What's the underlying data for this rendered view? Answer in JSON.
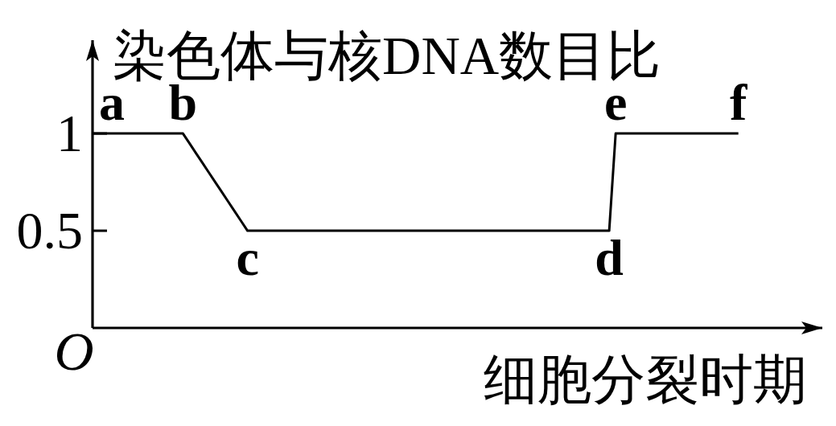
{
  "chart_data": {
    "type": "line",
    "xlabel": "细胞分裂时期",
    "ylabel": "染色体与核DNA数目比",
    "categories": [
      null,
      null,
      null,
      null,
      null,
      null,
      null,
      null,
      null,
      null,
      null,
      null,
      null,
      null,
      null,
      null,
      null,
      null,
      null,
      null,
      null,
      null,
      null,
      null,
      null,
      null,
      null,
      null,
      null,
      null,
      null,
      null,
      null,
      null,
      null,
      null,
      null,
      null,
      null,
      null,
      null,
      null,
      null,
      null,
      null,
      null,
      null,
      null,
      null,
      null,
      null,
      null,
      null,
      null,
      null,
      null,
      null,
      null,
      null,
      null,
      null,
      null,
      null,
      null,
      null,
      null,
      null,
      null,
      null,
      null,
      null,
      null,
      null,
      null,
      null,
      null,
      null,
      null,
      null,
      null,
      null,
      null,
      null,
      null,
      null,
      null,
      null,
      null,
      null,
      null,
      null,
      null,
      null,
      null,
      null,
      null,
      null,
      null,
      null,
      null,
      null,
      null,
      null,
      null,
      null,
      null,
      null,
      null,
      null,
      null,
      null,
      null,
      null,
      null
    ],
    "values": [
      1,
      1,
      1,
      1,
      1,
      1,
      1,
      1,
      1,
      1,
      1,
      1,
      1,
      1,
      1,
      0.95,
      0.9,
      0.85,
      0.8,
      0.75,
      0.7,
      0.65,
      0.6,
      0.55,
      0.5,
      0.5,
      0.5,
      0.5,
      0.5,
      0.5,
      0.5,
      0.5,
      0.5,
      0.5,
      0.5,
      0.5,
      0.5,
      0.5,
      0.5,
      0.5,
      0.5,
      0.5,
      0.5,
      0.5,
      0.5,
      0.5,
      0.5,
      0.5,
      0.5,
      0.5,
      0.5,
      0.5,
      0.5,
      0.5,
      0.5,
      0.5,
      0.5,
      0.5,
      0.5,
      0.5,
      0.5,
      0.5,
      0.5,
      0.5,
      0.5,
      0.5,
      0.5,
      0.5,
      0.5,
      0.5,
      0.5,
      0.5,
      0.5,
      0.5,
      0.5,
      0.5,
      0.5,
      0.5,
      0.5,
      0.5,
      0.5,
      1,
      1,
      1,
      1,
      1,
      1,
      1,
      1,
      1,
      1,
      1,
      1,
      1,
      1,
      1,
      1,
      1,
      1,
      1,
      1,
      null,
      null,
      null,
      null,
      null,
      null,
      null,
      null,
      null,
      null,
      null,
      null,
      null
    ],
    "value_labels": [
      "a",
      null,
      null,
      null,
      null,
      null,
      null,
      null,
      null,
      null,
      null,
      null,
      null,
      null,
      "b",
      null,
      null,
      null,
      null,
      null,
      null,
      null,
      null,
      null,
      "c",
      null,
      null,
      null,
      null,
      null,
      null,
      null,
      null,
      null,
      null,
      null,
      null,
      null,
      null,
      null,
      null,
      null,
      null,
      null,
      null,
      null,
      null,
      null,
      null,
      null,
      null,
      null,
      null,
      null,
      null,
      null,
      null,
      null,
      null,
      null,
      null,
      null,
      null,
      null,
      null,
      null,
      null,
      null,
      null,
      null,
      null,
      null,
      null,
      null,
      null,
      null,
      null,
      null,
      null,
      null,
      "d",
      "e",
      null,
      null,
      null,
      null,
      null,
      null,
      null,
      null,
      null,
      null,
      null,
      null,
      null,
      null,
      null,
      null,
      null,
      null,
      "f",
      null,
      null,
      null,
      null,
      null,
      null,
      null,
      null,
      null,
      null,
      null,
      null,
      null
    ],
    "color": "#000000",
    "ylim": [
      0,
      1.48
    ],
    "yticks": [
      0.5,
      1
    ],
    "tick_labels": "y",
    "annotations": [
      "O"
    ]
  }
}
